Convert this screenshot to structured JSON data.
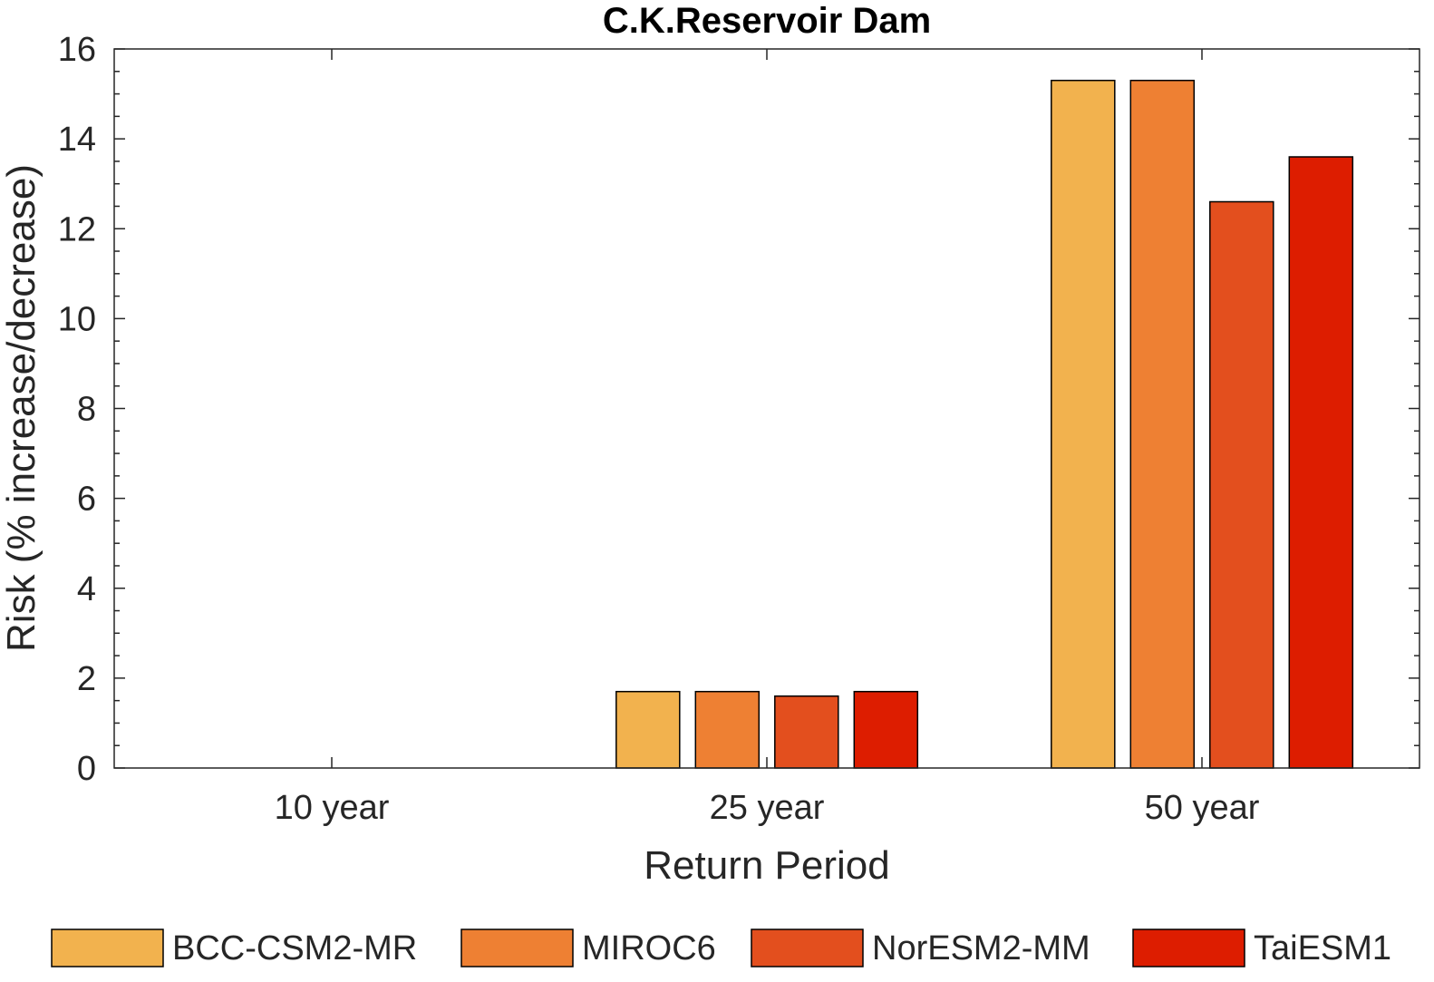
{
  "chart_data": {
    "type": "bar",
    "title": "C.K.Reservoir Dam",
    "xlabel": "Return Period",
    "ylabel": "Risk (% increase/decrease)",
    "categories": [
      "10 year",
      "25 year",
      "50 year"
    ],
    "ylim": [
      0,
      16
    ],
    "yticks": [
      "0",
      "2",
      "4",
      "6",
      "8",
      "10",
      "12",
      "14",
      "16"
    ],
    "grid": false,
    "legend_position": "bottom",
    "series": [
      {
        "name": "BCC-CSM2-MR",
        "color": "#F2B24E",
        "values": [
          0,
          1.7,
          15.3
        ]
      },
      {
        "name": "MIROC6",
        "color": "#EE8033",
        "values": [
          0,
          1.7,
          15.3
        ]
      },
      {
        "name": "NorESM2-MM",
        "color": "#E34F1E",
        "values": [
          0,
          1.6,
          12.6
        ]
      },
      {
        "name": "TaiESM1",
        "color": "#DD1D00",
        "values": [
          0,
          1.7,
          13.6
        ]
      }
    ]
  }
}
